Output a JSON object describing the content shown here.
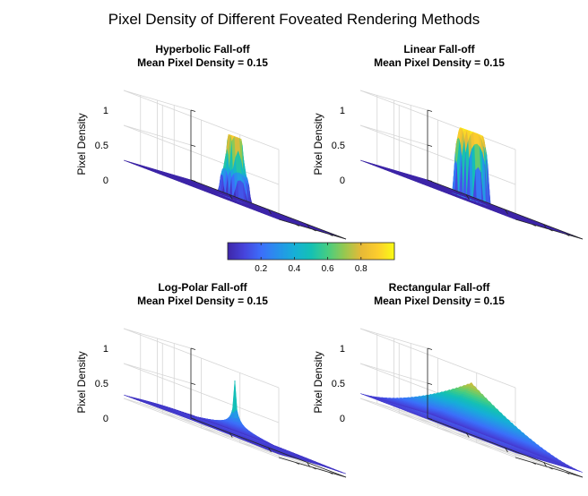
{
  "figure": {
    "title": "Pixel Density of Different Foveated Rendering Methods"
  },
  "colorbar": {
    "colormap": "parula",
    "ticks": [
      "0.2",
      "0.4",
      "0.6",
      "0.8"
    ],
    "range": [
      0,
      1
    ]
  },
  "chart_data": [
    {
      "type": "surface",
      "title": "Hyperbolic Fall-off",
      "subtitle": "Mean Pixel Density = 0.15",
      "zlabel": "Pixel Density",
      "zlim": [
        0,
        1
      ],
      "zticks": [
        "0",
        "0.5",
        "1"
      ],
      "shape": "hyperbolic",
      "peak": 0.9,
      "plateau": 0.43,
      "base": 0.0
    },
    {
      "type": "surface",
      "title": "Linear Fall-off",
      "subtitle": "Mean Pixel Density = 0.15",
      "zlabel": "Pixel Density",
      "zlim": [
        0,
        1
      ],
      "zticks": [
        "0",
        "0.5",
        "1"
      ],
      "shape": "linear",
      "peak": 0.97,
      "base": 0.0
    },
    {
      "type": "surface",
      "title": "Log-Polar Fall-off",
      "subtitle": "Mean Pixel Density = 0.15",
      "zlabel": "Pixel Density",
      "zlim": [
        0,
        1
      ],
      "zticks": [
        "0",
        "0.5",
        "1"
      ],
      "shape": "logpolar",
      "peak": 0.82,
      "base": 0.05
    },
    {
      "type": "surface",
      "title": "Rectangular Fall-off",
      "subtitle": "Mean Pixel Density = 0.15",
      "zlabel": "Pixel Density",
      "zlim": [
        0,
        1
      ],
      "zticks": [
        "0",
        "0.5",
        "1"
      ],
      "shape": "rectangular",
      "peak": 0.79,
      "base": 0.07
    }
  ]
}
